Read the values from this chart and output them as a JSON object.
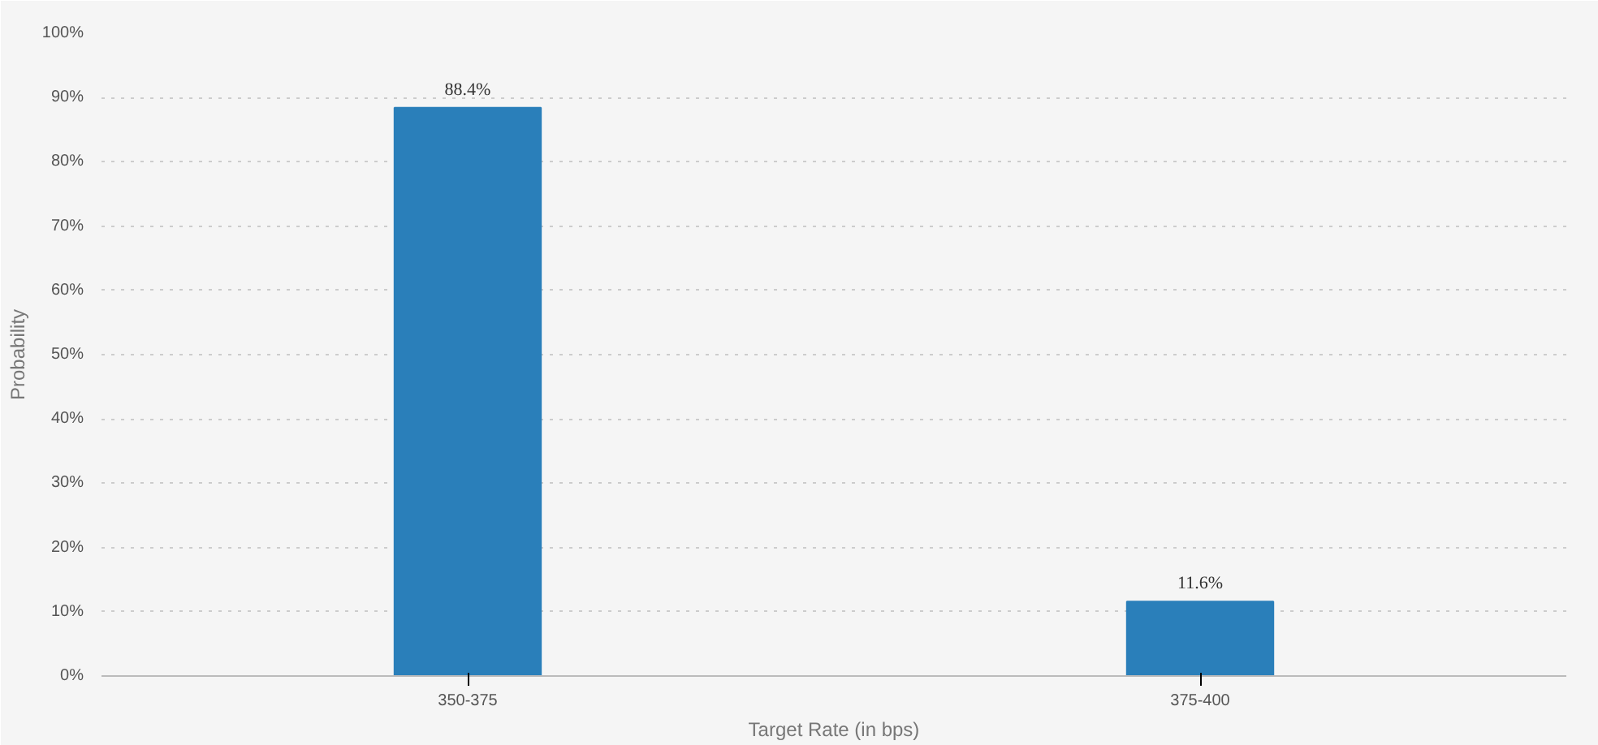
{
  "chart_data": {
    "type": "bar",
    "xlabel": "Target Rate (in bps)",
    "ylabel": "Probability",
    "categories": [
      "350-375",
      "375-400"
    ],
    "values": [
      88.4,
      11.6
    ],
    "color": "#2a7fba",
    "value_labels": [
      "88.4%",
      "11.6%"
    ],
    "ylim": [
      0,
      100
    ],
    "yticks": [
      {
        "value": 0,
        "label": "0%"
      },
      {
        "value": 10,
        "label": "10%"
      },
      {
        "value": 20,
        "label": "20%"
      },
      {
        "value": 30,
        "label": "30%"
      },
      {
        "value": 40,
        "label": "40%"
      },
      {
        "value": 50,
        "label": "50%"
      },
      {
        "value": 60,
        "label": "60%"
      },
      {
        "value": 70,
        "label": "70%"
      },
      {
        "value": 80,
        "label": "80%"
      },
      {
        "value": 90,
        "label": "90%"
      },
      {
        "value": 100,
        "label": "100%"
      }
    ],
    "grid": "y"
  }
}
